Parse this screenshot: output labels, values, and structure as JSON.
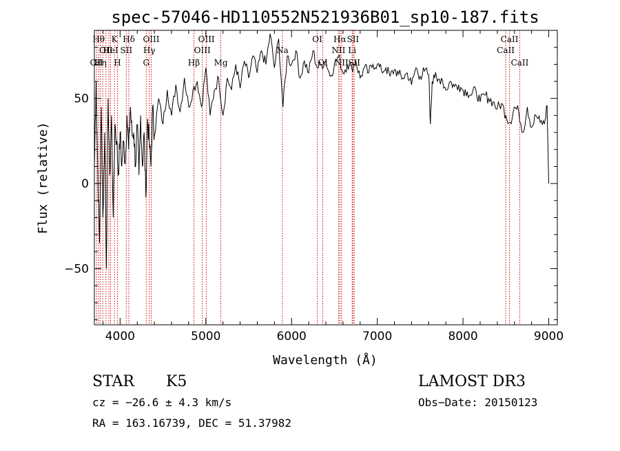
{
  "chart_data": {
    "type": "line",
    "title": "spec-57046-HD110552N521936B01_sp10-187.fits",
    "xlabel": "Wavelength (Å)",
    "ylabel": "Flux (relative)",
    "xlim": [
      3700,
      9100
    ],
    "ylim": [
      -83,
      90
    ],
    "x_ticks": [
      4000,
      5000,
      6000,
      7000,
      8000,
      9000
    ],
    "y_ticks": [
      -50,
      0,
      50
    ],
    "tick_labels": {
      "x": [
        "4000",
        "5000",
        "6000",
        "7000",
        "8000",
        "9000"
      ],
      "y": [
        "−50",
        "0",
        "50"
      ]
    },
    "series": [
      {
        "name": "flux",
        "x": [
          3700,
          3720,
          3740,
          3760,
          3780,
          3800,
          3820,
          3840,
          3860,
          3880,
          3900,
          3920,
          3940,
          3960,
          3980,
          4000,
          4020,
          4040,
          4060,
          4080,
          4100,
          4120,
          4140,
          4160,
          4180,
          4200,
          4220,
          4240,
          4260,
          4280,
          4300,
          4320,
          4340,
          4360,
          4380,
          4400,
          4450,
          4500,
          4550,
          4600,
          4650,
          4700,
          4750,
          4800,
          4850,
          4900,
          4950,
          5000,
          5050,
          5100,
          5150,
          5200,
          5250,
          5300,
          5350,
          5400,
          5450,
          5500,
          5550,
          5600,
          5650,
          5700,
          5750,
          5800,
          5850,
          5900,
          5950,
          6000,
          6050,
          6100,
          6150,
          6200,
          6250,
          6300,
          6350,
          6400,
          6450,
          6500,
          6550,
          6600,
          6650,
          6700,
          6750,
          6800,
          6850,
          6900,
          6950,
          7000,
          7050,
          7100,
          7150,
          7200,
          7250,
          7300,
          7350,
          7400,
          7450,
          7500,
          7550,
          7600,
          7620,
          7640,
          7660,
          7700,
          7750,
          7800,
          7850,
          7900,
          7950,
          8000,
          8050,
          8100,
          8150,
          8200,
          8250,
          8300,
          8350,
          8400,
          8450,
          8500,
          8550,
          8600,
          8650,
          8700,
          8750,
          8800,
          8850,
          8900,
          8950,
          8980,
          9000
        ],
        "values": [
          10,
          60,
          5,
          -35,
          45,
          -20,
          30,
          -50,
          50,
          5,
          40,
          -20,
          35,
          25,
          5,
          30,
          10,
          25,
          12,
          40,
          20,
          45,
          28,
          30,
          10,
          35,
          5,
          40,
          10,
          30,
          -8,
          38,
          25,
          10,
          45,
          28,
          50,
          35,
          55,
          40,
          58,
          42,
          62,
          45,
          55,
          60,
          45,
          68,
          40,
          55,
          62,
          40,
          62,
          55,
          70,
          56,
          72,
          62,
          75,
          65,
          78,
          70,
          88,
          68,
          85,
          45,
          75,
          70,
          78,
          62,
          72,
          65,
          78,
          68,
          70,
          72,
          63,
          70,
          75,
          65,
          70,
          68,
          72,
          62,
          68,
          65,
          70,
          70,
          66,
          68,
          63,
          67,
          64,
          62,
          65,
          58,
          68,
          63,
          66,
          64,
          35,
          60,
          64,
          60,
          62,
          55,
          60,
          57,
          58,
          55,
          54,
          52,
          55,
          48,
          52,
          50,
          48,
          44,
          47,
          40,
          36,
          45,
          42,
          30,
          45,
          33,
          40,
          36,
          35,
          46,
          0
        ]
      }
    ],
    "spectral_lines": [
      {
        "x": 3726,
        "label": "OII",
        "row": 3
      },
      {
        "x": 3750,
        "label": "Hθ",
        "row": 1
      },
      {
        "x": 3770,
        "label": "Hη",
        "row": 3
      },
      {
        "x": 3798,
        "label": "",
        "row": 0
      },
      {
        "x": 3835,
        "label": "OII",
        "row": 2
      },
      {
        "x": 3869,
        "label": "",
        "row": 0
      },
      {
        "x": 3889,
        "label": "HeI",
        "row": 2
      },
      {
        "x": 3934,
        "label": "K",
        "row": 1
      },
      {
        "x": 3969,
        "label": "H",
        "row": 3
      },
      {
        "x": 4072,
        "label": "SII",
        "row": 2
      },
      {
        "x": 4102,
        "label": "Hδ",
        "row": 1
      },
      {
        "x": 4305,
        "label": "G",
        "row": 3
      },
      {
        "x": 4340,
        "label": "Hγ",
        "row": 2
      },
      {
        "x": 4363,
        "label": "OIII",
        "row": 1
      },
      {
        "x": 4861,
        "label": "Hβ",
        "row": 3
      },
      {
        "x": 4959,
        "label": "OIII",
        "row": 2
      },
      {
        "x": 5007,
        "label": "OIII",
        "row": 1
      },
      {
        "x": 5175,
        "label": "Mg",
        "row": 3
      },
      {
        "x": 5893,
        "label": "Na",
        "row": 2
      },
      {
        "x": 6300,
        "label": "OI",
        "row": 1
      },
      {
        "x": 6364,
        "label": "OI",
        "row": 3
      },
      {
        "x": 6548,
        "label": "NII",
        "row": 2
      },
      {
        "x": 6563,
        "label": "Hα",
        "row": 1
      },
      {
        "x": 6583,
        "label": "NII",
        "row": 3
      },
      {
        "x": 6707,
        "label": "Li",
        "row": 2
      },
      {
        "x": 6716,
        "label": "SII",
        "row": 1
      },
      {
        "x": 6731,
        "label": "SII",
        "row": 3
      },
      {
        "x": 8498,
        "label": "CaII",
        "row": 2
      },
      {
        "x": 8542,
        "label": "CaII",
        "row": 1
      },
      {
        "x": 8662,
        "label": "CaII",
        "row": 3
      }
    ]
  },
  "info": {
    "class": "STAR",
    "subclass": "K5",
    "survey": "LAMOST DR3",
    "cz": "cz = −26.6 ± 4.3 km/s",
    "obs_date": "Obs−Date: 20150123",
    "coords": "RA = 163.16739, DEC =  51.37982"
  }
}
